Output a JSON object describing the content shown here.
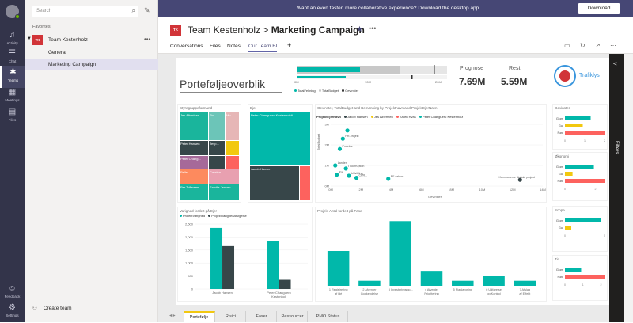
{
  "rail": [
    {
      "label": "Activity",
      "icon": "bell-icon"
    },
    {
      "label": "Chat",
      "icon": "chat-icon"
    },
    {
      "label": "Teams",
      "icon": "teams-icon"
    },
    {
      "label": "Meetings",
      "icon": "calendar-icon"
    },
    {
      "label": "Files",
      "icon": "file-icon"
    },
    {
      "label": "Feedback",
      "icon": "feedback-icon"
    },
    {
      "label": "Settings",
      "icon": "gear-icon"
    }
  ],
  "panel": {
    "search_placeholder": "Search",
    "favorites": "Favorites",
    "team_initials": "TK",
    "team_name": "Team Kestenholz",
    "channels": [
      "General",
      "Marketing Campaign"
    ],
    "create_team": "Create team"
  },
  "banner": {
    "message": "Want an even faster, more collaborative experience? Download the desktop app.",
    "button": "Download"
  },
  "header": {
    "initials": "TK",
    "team": "Team Kestenholz",
    "separator": ">",
    "channel": "Marketing Campaign",
    "tabs": [
      "Conversations",
      "Files",
      "Notes",
      "Our Team BI"
    ],
    "add": "+"
  },
  "report": {
    "title": "Porteføljeoverblik",
    "bullet_ticks": [
      "0M",
      "10M",
      "20M"
    ],
    "bullet_legend": [
      "TotalFeltning",
      "TotalBudget",
      "Gevinster"
    ],
    "kpi": [
      {
        "label": "Prognose",
        "value": "7.69M"
      },
      {
        "label": "Rest",
        "value": "5.59M"
      }
    ],
    "traffic_label": "Trafiklys",
    "filters_label": "Filters",
    "treemap1": {
      "title": "Styregruppeformand",
      "cells": [
        {
          "label": "Jes Albertsen",
          "color": "#1ab59c"
        },
        {
          "label": "Peter Hansen",
          "color": "#374649"
        },
        {
          "label": "Jesp...",
          "color": "#374649"
        },
        {
          "label": "Peter Chang...",
          "color": "#fd625e"
        },
        {
          "label": "Peter Chang...",
          "color": "#a66999"
        },
        {
          "label": "Per Tollersen",
          "color": "#1ab59c"
        },
        {
          "label": "Carsten...",
          "color": "#f2c80f"
        },
        {
          "label": "Sandie Jensen",
          "color": "#1ab59c"
        }
      ]
    },
    "treemap2": {
      "title": "Ejer",
      "cells": [
        {
          "label": "Peter Changuero Kestenholdt",
          "color": "#01b8aa"
        },
        {
          "label": "Jacob Hansen",
          "color": "#374649"
        }
      ]
    },
    "scatter": {
      "title": "Gevinster, TotalBudget and Bemanning by Projektnavn and ProjektEjerNavn",
      "legend_title": "ProjektEjerNavn",
      "legend": [
        "Jacob Hansen",
        "Jes Albertsen",
        "Karen Hvas",
        "Peter Changueru Kestenholz"
      ],
      "ylabel": "TotalBudget",
      "xlabel": "Gevinster",
      "yticks": [
        "0M",
        "1M",
        "2M",
        "3M"
      ],
      "xticks": [
        "0M",
        "2M",
        "4M",
        "6M",
        "8M",
        "10M",
        "12M",
        "14M"
      ],
      "point_labels": [
        "HR-projekt",
        "Projekts",
        "Landen",
        "Kat..",
        "Udvikling",
        "IT-korruption",
        "CPR...",
        "EF-sektor",
        "Kommuneme digitale projekt"
      ]
    },
    "bar1": {
      "title": "Varighed fordelt på Ejer",
      "legend": [
        "ProjektVarighed",
        "ProjektVarighedAfvigelse"
      ],
      "yticks": [
        "0",
        "500",
        "1,000",
        "1,500",
        "2,000",
        "2,500"
      ],
      "categories": [
        "Jacob Hansen",
        "Peter Changuero Kestenholt"
      ]
    },
    "bar2": {
      "title": "Projekt Antal fordelt på Fase",
      "categories": [
        "1 Registrering af idé",
        "2 Afventer Godkendelse",
        "3 Investeringsgo...",
        "4 Afventer Prioritering",
        "5 Planlægning",
        "6 Udførelse og Kontrol",
        "7 Afslag af Effekt"
      ]
    },
    "small_charts": [
      {
        "title": "Gevinster",
        "labels": [
          "Grøn",
          "Gul",
          "Rød"
        ],
        "ticks": [
          "0",
          "1",
          "2"
        ]
      },
      {
        "title": "Økonomi",
        "labels": [
          "Grøn",
          "Gul",
          "Rød"
        ],
        "ticks": [
          "0",
          "2"
        ]
      },
      {
        "title": "Scope",
        "labels": [
          "Grøn",
          "Gul"
        ],
        "ticks": [
          "0",
          "5"
        ]
      },
      {
        "title": "Tid",
        "labels": [
          "Grøn",
          "Rød"
        ],
        "ticks": [
          "0",
          "1",
          "2"
        ]
      }
    ],
    "page_tabs": [
      "Portefølje",
      "Risici",
      "Faser",
      "Ressourcer",
      "PMO Status"
    ]
  },
  "chart_data": [
    {
      "type": "bar",
      "title": "Varighed fordelt på Ejer",
      "categories": [
        "Jacob Hansen",
        "Peter Changuero Kestenholt"
      ],
      "series": [
        {
          "name": "ProjektVarighed",
          "values": [
            2350,
            1850
          ]
        },
        {
          "name": "ProjektVarighedAfvigelse",
          "values": [
            1650,
            350
          ]
        }
      ],
      "ylim": [
        0,
        2500
      ],
      "legend": "top-left",
      "colors": [
        "#01b8aa",
        "#374649"
      ]
    },
    {
      "type": "bar",
      "title": "Projekt Antal fordelt på Fase",
      "categories": [
        "1 Registrering af idé",
        "2 Afventer Godkendelse",
        "3 Investeringsgo...",
        "4 Afventer Prioritering",
        "5 Planlægning",
        "6 Udførelse og Kontrol",
        "7 Afslag af Effekt"
      ],
      "values": [
        7,
        1,
        13,
        3,
        1,
        2,
        1
      ],
      "ylim": [
        0,
        14
      ],
      "colors": [
        "#01b8aa"
      ]
    },
    {
      "type": "bar",
      "title": "Gevinster",
      "categories": [
        "Grøn",
        "Gul",
        "Rød"
      ],
      "values": [
        1.3,
        0.9,
        2.0
      ],
      "colors": [
        "#01b8aa",
        "#f2c80f",
        "#fd625e"
      ]
    },
    {
      "type": "bar",
      "title": "Økonomi",
      "categories": [
        "Grøn",
        "Gul",
        "Rød"
      ],
      "values": [
        1.9,
        0.5,
        2.6
      ],
      "colors": [
        "#01b8aa",
        "#f2c80f",
        "#fd625e"
      ]
    },
    {
      "type": "bar",
      "title": "Scope",
      "categories": [
        "Grøn",
        "Gul"
      ],
      "values": [
        4.5,
        0.8
      ],
      "colors": [
        "#01b8aa",
        "#f2c80f"
      ]
    },
    {
      "type": "bar",
      "title": "Tid",
      "categories": [
        "Grøn",
        "Rød"
      ],
      "values": [
        0.9,
        2.2
      ],
      "colors": [
        "#01b8aa",
        "#fd625e"
      ]
    },
    {
      "type": "scatter",
      "title": "Gevinster, TotalBudget and Bemanning by Projektnavn and ProjektEjerNavn",
      "xlabel": "Gevinster",
      "ylabel": "TotalBudget",
      "xlim": [
        0,
        14
      ],
      "ylim": [
        0,
        3
      ],
      "points": [
        {
          "x": 0.8,
          "y": 2.3,
          "label": "HR-projekt",
          "color": "#01b8aa"
        },
        {
          "x": 1.1,
          "y": 2.7,
          "label": "",
          "color": "#01b8aa"
        },
        {
          "x": 0.6,
          "y": 1.8,
          "label": "Projekts",
          "color": "#01b8aa"
        },
        {
          "x": 0.3,
          "y": 1.0,
          "label": "Landen",
          "color": "#01b8aa"
        },
        {
          "x": 1.0,
          "y": 0.85,
          "label": "IT-korruption",
          "color": "#01b8aa"
        },
        {
          "x": 0.4,
          "y": 0.55,
          "label": "Kat..",
          "color": "#01b8aa"
        },
        {
          "x": 1.2,
          "y": 0.5,
          "label": "Udvikling",
          "color": "#01b8aa"
        },
        {
          "x": 1.7,
          "y": 0.4,
          "label": "CPR...",
          "color": "#01b8aa"
        },
        {
          "x": 3.8,
          "y": 0.35,
          "label": "EF-sektor",
          "color": "#01b8aa"
        },
        {
          "x": 12.5,
          "y": 0.3,
          "label": "Kommuneme digitale projekt",
          "color": "#374649"
        }
      ]
    }
  ]
}
